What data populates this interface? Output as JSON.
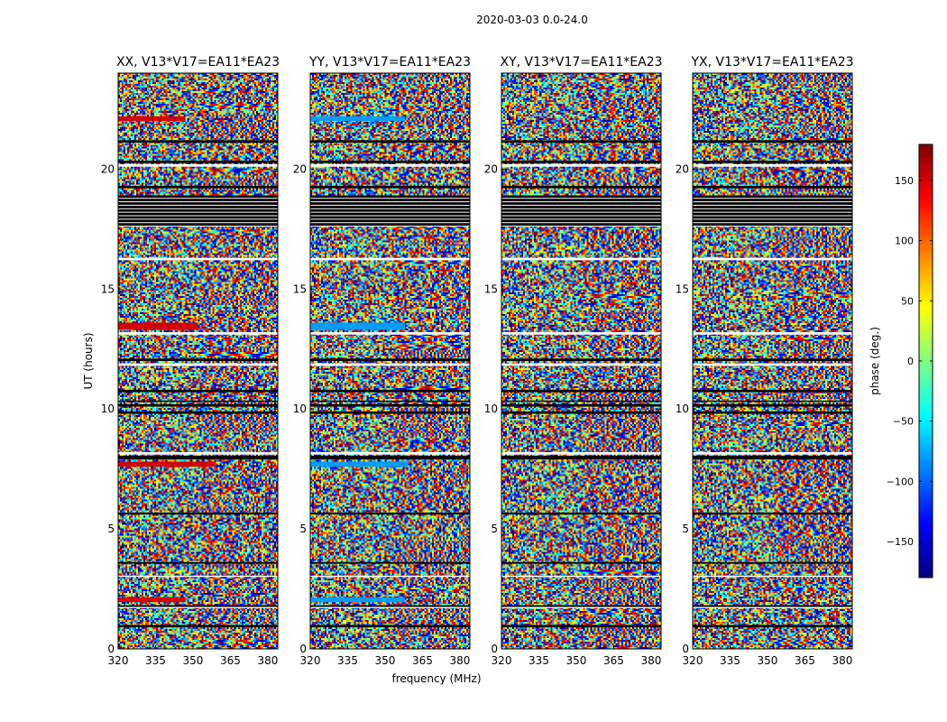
{
  "figure": {
    "suptitle": "2020-03-03 0.0-24.0",
    "xlabel": "frequency (MHz)",
    "ylabel": "UT (hours)"
  },
  "chart_data": {
    "type": "heatmap",
    "title": "2020-03-03 0.0-24.0",
    "xlabel": "frequency (MHz)",
    "ylabel": "UT (hours)",
    "xlim": [
      320,
      384
    ],
    "ylim": [
      0,
      24
    ],
    "xticks": [
      320,
      335,
      350,
      365,
      380
    ],
    "yticks": [
      0,
      5,
      10,
      15,
      20
    ],
    "colormap": "jet",
    "panels": [
      {
        "title": "XX, V13*V17=EA11*EA23",
        "polarization": "XX"
      },
      {
        "title": "YY, V13*V17=EA11*EA23",
        "polarization": "YY"
      },
      {
        "title": "XY, V13*V17=EA11*EA23",
        "polarization": "XY"
      },
      {
        "title": "YX, V13*V17=EA11*EA23",
        "polarization": "YX"
      }
    ],
    "colorbar": {
      "label": "phase (deg.)",
      "range": [
        -180,
        180
      ],
      "ticks": [
        -150,
        -100,
        -50,
        0,
        50,
        100,
        150
      ]
    },
    "flagged_time_bands_hours": [
      [
        0.9,
        1.0
      ],
      [
        1.75,
        1.82
      ],
      [
        3.55,
        3.62
      ],
      [
        5.6,
        5.68
      ],
      [
        7.9,
        8.05
      ],
      [
        9.8,
        9.9
      ],
      [
        10.1,
        10.2
      ],
      [
        10.3,
        10.35
      ],
      [
        10.7,
        10.8
      ],
      [
        12.0,
        12.1
      ],
      [
        17.6,
        18.9
      ],
      [
        19.2,
        19.3
      ],
      [
        20.25,
        20.35
      ],
      [
        21.1,
        21.2
      ]
    ],
    "blank_time_bands_hours": [
      [
        1.7,
        1.75
      ],
      [
        3.0,
        3.05
      ],
      [
        8.1,
        8.2
      ],
      [
        11.8,
        11.9
      ],
      [
        13.1,
        13.2
      ],
      [
        16.2,
        16.3
      ],
      [
        20.1,
        20.2
      ]
    ],
    "highlight_bands": [
      {
        "panel": "XX",
        "hours": [
          1.95,
          2.15
        ],
        "freq_end": 347,
        "phase": 150
      },
      {
        "panel": "XX",
        "hours": [
          7.6,
          7.8
        ],
        "freq_end": 359,
        "phase": 150
      },
      {
        "panel": "XX",
        "hours": [
          13.3,
          13.6
        ],
        "freq_end": 352,
        "phase": 150
      },
      {
        "panel": "XX",
        "hours": [
          22.0,
          22.2
        ],
        "freq_end": 347,
        "phase": 150
      },
      {
        "panel": "YY",
        "hours": [
          1.95,
          2.15
        ],
        "freq_end": 358,
        "phase": -80
      },
      {
        "panel": "YY",
        "hours": [
          7.6,
          7.8
        ],
        "freq_end": 359,
        "phase": -80
      },
      {
        "panel": "YY",
        "hours": [
          13.3,
          13.6
        ],
        "freq_end": 358,
        "phase": -80
      },
      {
        "panel": "YY",
        "hours": [
          22.0,
          22.2
        ],
        "freq_end": 358,
        "phase": -80
      }
    ]
  }
}
